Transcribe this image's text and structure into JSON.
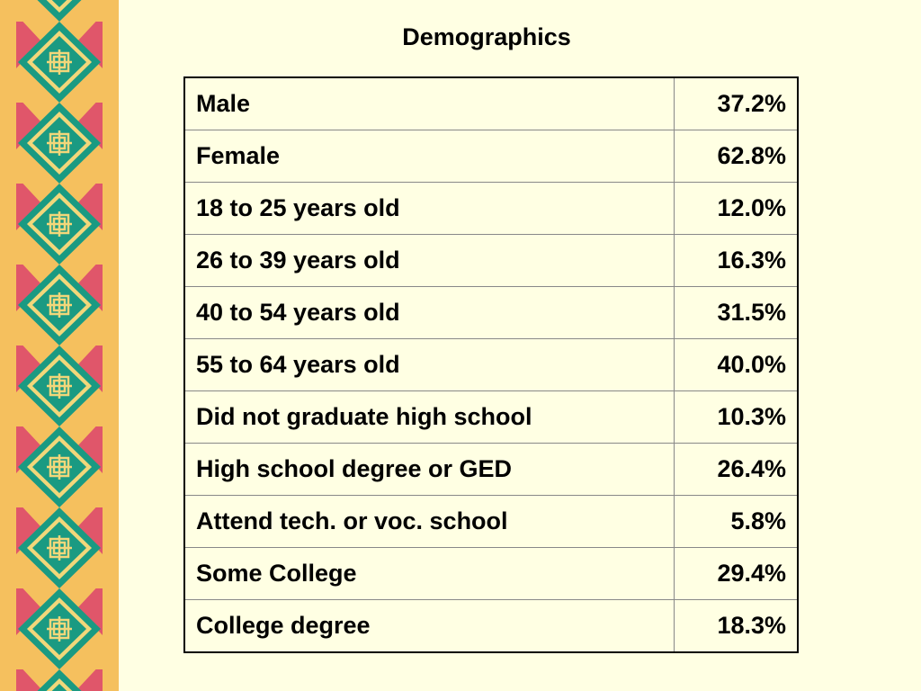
{
  "title": "Demographics",
  "table": {
    "rows": [
      [
        "Male",
        "37.2%"
      ],
      [
        "Female",
        "62.8%"
      ],
      [
        "18 to 25 years old",
        "12.0%"
      ],
      [
        "26 to 39 years old",
        "16.3%"
      ],
      [
        "40 to 54 years old",
        "31.5%"
      ],
      [
        "55 to 64 years old",
        "40.0%"
      ],
      [
        "Did not graduate high school",
        "10.3%"
      ],
      [
        "High school degree or GED",
        "26.4%"
      ],
      [
        "Attend tech. or voc. school",
        "5.8%"
      ],
      [
        "Some College",
        "29.4%"
      ],
      [
        "College degree",
        "18.3%"
      ]
    ]
  }
}
